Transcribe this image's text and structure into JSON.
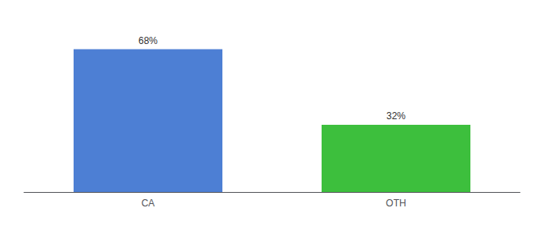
{
  "chart_data": {
    "type": "bar",
    "categories": [
      "CA",
      "OTH"
    ],
    "values": [
      68,
      32
    ],
    "value_labels": [
      "68%",
      "32%"
    ],
    "colors": [
      "#4d7fd4",
      "#3dbf3d"
    ],
    "ylim": [
      0,
      80
    ],
    "data_labels": true,
    "tick_labels": "x",
    "grid": false
  }
}
